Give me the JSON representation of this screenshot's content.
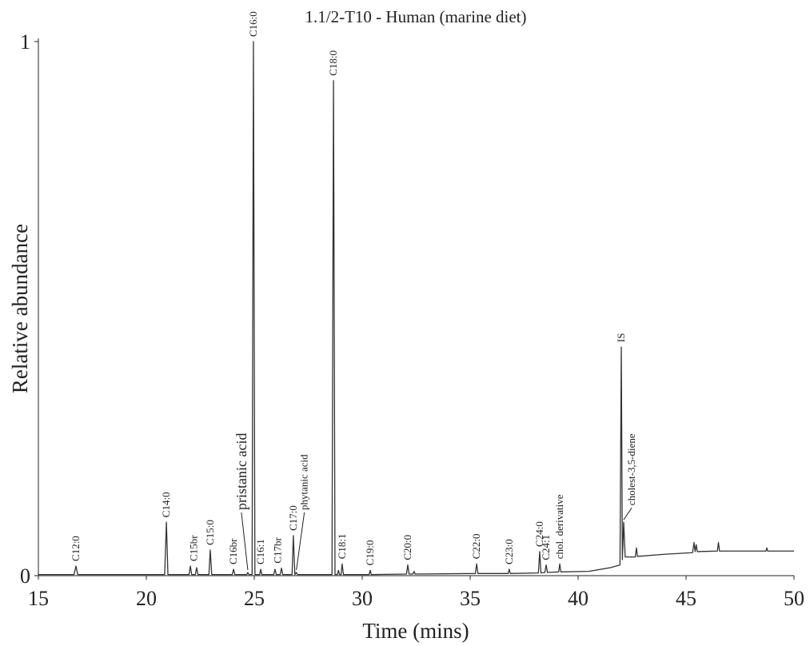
{
  "chart_data": {
    "type": "line",
    "title": "1.1/2-T10 - Human (marine diet)",
    "x_label": "Time (mins)",
    "y_label": "Relative abundance",
    "xlim": [
      15,
      50
    ],
    "xticks": [
      15,
      20,
      25,
      30,
      35,
      40,
      45,
      50
    ],
    "ylim": [
      0,
      1
    ],
    "yticks": [
      0,
      1
    ],
    "series": [
      {
        "color": "#333333",
        "x": [
          15,
          16.65,
          16.74,
          16.82,
          20.85,
          20.93,
          21.0,
          21.98,
          22.04,
          22.1,
          22.27,
          22.33,
          22.39,
          22.9,
          22.96,
          23.03,
          23.98,
          24.04,
          24.1,
          24.65,
          24.7,
          24.75,
          24.9,
          24.96,
          25.03,
          25.25,
          25.3,
          25.35,
          25.9,
          25.96,
          26.02,
          26.2,
          26.26,
          26.32,
          26.75,
          26.81,
          26.88,
          26.95,
          27.0,
          28.6,
          28.67,
          28.74,
          28.85,
          28.9,
          28.95,
          29.02,
          29.07,
          29.13,
          30.32,
          30.37,
          30.42,
          32.05,
          32.11,
          32.17,
          32.35,
          32.4,
          32.45,
          35.24,
          35.3,
          35.36,
          36.76,
          36.81,
          36.86,
          38.16,
          38.22,
          38.28,
          38.46,
          38.52,
          38.58,
          39.1,
          39.15,
          39.2,
          40.5,
          41.5,
          41.94,
          42.0,
          42.05,
          42.11,
          42.18,
          42.65,
          42.7,
          42.75,
          44,
          45.3,
          45.37,
          45.42,
          45.47,
          45.52,
          46.45,
          46.5,
          46.55,
          48.7,
          48.74,
          48.78,
          50
        ],
        "values": [
          0.002,
          0.002,
          0.018,
          0.002,
          0.002,
          0.1,
          0.002,
          0.002,
          0.018,
          0.002,
          0.002,
          0.015,
          0.002,
          0.002,
          0.048,
          0.002,
          0.002,
          0.012,
          0.002,
          0.002,
          0.006,
          0.002,
          0.002,
          1,
          0.002,
          0.002,
          0.012,
          0.002,
          0.002,
          0.012,
          0.002,
          0.002,
          0.014,
          0.002,
          0.002,
          0.075,
          0.002,
          0.006,
          0.002,
          0.002,
          0.927,
          0.002,
          0.002,
          0.01,
          0.002,
          0.002,
          0.022,
          0.002,
          0.002,
          0.01,
          0.002,
          0.003,
          0.02,
          0.003,
          0.003,
          0.008,
          0.003,
          0.004,
          0.022,
          0.004,
          0.004,
          0.012,
          0.004,
          0.005,
          0.045,
          0.005,
          0.006,
          0.02,
          0.006,
          0.007,
          0.022,
          0.007,
          0.008,
          0.015,
          0.02,
          0.428,
          0.03,
          0.1,
          0.035,
          0.035,
          0.052,
          0.036,
          0.04,
          0.043,
          0.062,
          0.045,
          0.058,
          0.045,
          0.046,
          0.062,
          0.046,
          0.046,
          0.052,
          0.046,
          0.046
        ]
      }
    ],
    "annotations": [
      {
        "text": "C12:0",
        "x": 16.74,
        "y": 0.018
      },
      {
        "text": "C14:0",
        "x": 20.93,
        "y": 0.1
      },
      {
        "text": "C15br",
        "x": 22.2,
        "y": 0.018
      },
      {
        "text": "C15:0",
        "x": 22.96,
        "y": 0.048
      },
      {
        "text": "C16br",
        "x": 24.04,
        "y": 0.012
      },
      {
        "text": "pristanic acid",
        "x": 24.7,
        "y": 0.006,
        "leader": true
      },
      {
        "text": "C16:0",
        "x": 24.96,
        "y": 1
      },
      {
        "text": "C16:1",
        "x": 25.3,
        "y": 0.012
      },
      {
        "text": "C17br",
        "x": 26.1,
        "y": 0.014
      },
      {
        "text": "C17:0",
        "x": 26.81,
        "y": 0.075
      },
      {
        "text": "phytanic acid",
        "x": 26.95,
        "y": 0.006,
        "leader": true
      },
      {
        "text": "C18:0",
        "x": 28.67,
        "y": 0.927
      },
      {
        "text": "C18:1",
        "x": 29.07,
        "y": 0.022
      },
      {
        "text": "C19:0",
        "x": 30.37,
        "y": 0.01
      },
      {
        "text": "C20:0",
        "x": 32.11,
        "y": 0.02
      },
      {
        "text": "C22:0",
        "x": 35.3,
        "y": 0.022
      },
      {
        "text": "C23:0",
        "x": 36.81,
        "y": 0.012
      },
      {
        "text": "C24:0",
        "x": 38.22,
        "y": 0.045
      },
      {
        "text": "C24:1",
        "x": 38.52,
        "y": 0.02
      },
      {
        "text": "chol. derivative",
        "x": 39.15,
        "y": 0.022
      },
      {
        "text": "IS",
        "x": 42.0,
        "y": 0.428
      },
      {
        "text": "cholest-3,5-diene",
        "x": 42.11,
        "y": 0.1,
        "leader": true
      }
    ]
  }
}
